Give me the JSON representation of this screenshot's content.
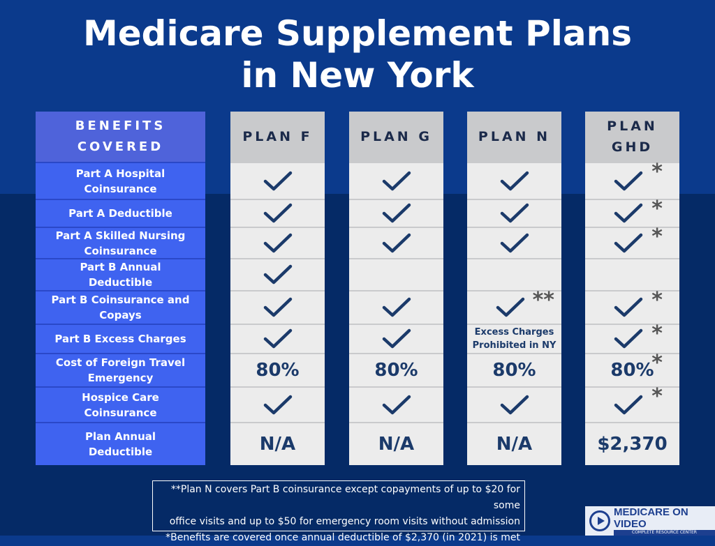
{
  "title": {
    "line1": "Medicare Supplement Plans",
    "line2": "in New York"
  },
  "benefits": {
    "header_line1": "BENEFITS",
    "header_line2": "COVERED",
    "rows": [
      {
        "line1": "Part A Hospital",
        "line2": "Coinsurance"
      },
      {
        "line1": "Part A Deductible",
        "line2": ""
      },
      {
        "line1": "Part A Skilled Nursing",
        "line2": "Coinsurance"
      },
      {
        "line1": "Part B Annual",
        "line2": "Deductible"
      },
      {
        "line1": "Part B Coinsurance and",
        "line2": "Copays"
      },
      {
        "line1": "Part B Excess Charges",
        "line2": ""
      },
      {
        "line1": "Cost of Foreign Travel",
        "line2": "Emergency"
      },
      {
        "line1": "Hospice Care",
        "line2": "Coinsurance"
      },
      {
        "line1": "Plan Annual",
        "line2": "Deductible"
      }
    ]
  },
  "plans": [
    {
      "header_line1": "PLAN F",
      "header_line2": "",
      "cells": [
        {
          "type": "check",
          "mark": ""
        },
        {
          "type": "check",
          "mark": ""
        },
        {
          "type": "check",
          "mark": ""
        },
        {
          "type": "check",
          "mark": ""
        },
        {
          "type": "check",
          "mark": ""
        },
        {
          "type": "check",
          "mark": ""
        },
        {
          "type": "text",
          "value": "80%",
          "mark": ""
        },
        {
          "type": "check",
          "mark": ""
        },
        {
          "type": "text",
          "value": "N/A",
          "mark": ""
        }
      ]
    },
    {
      "header_line1": "PLAN G",
      "header_line2": "",
      "cells": [
        {
          "type": "check",
          "mark": ""
        },
        {
          "type": "check",
          "mark": ""
        },
        {
          "type": "check",
          "mark": ""
        },
        {
          "type": "empty"
        },
        {
          "type": "check",
          "mark": ""
        },
        {
          "type": "check",
          "mark": ""
        },
        {
          "type": "text",
          "value": "80%",
          "mark": ""
        },
        {
          "type": "check",
          "mark": ""
        },
        {
          "type": "text",
          "value": "N/A",
          "mark": ""
        }
      ]
    },
    {
      "header_line1": "PLAN N",
      "header_line2": "",
      "cells": [
        {
          "type": "check",
          "mark": ""
        },
        {
          "type": "check",
          "mark": ""
        },
        {
          "type": "check",
          "mark": ""
        },
        {
          "type": "empty"
        },
        {
          "type": "check",
          "mark": "**"
        },
        {
          "type": "small",
          "line1": "Excess Charges",
          "line2": "Prohibited in NY"
        },
        {
          "type": "text",
          "value": "80%",
          "mark": ""
        },
        {
          "type": "check",
          "mark": ""
        },
        {
          "type": "text",
          "value": "N/A",
          "mark": ""
        }
      ]
    },
    {
      "header_line1": "PLAN",
      "header_line2": "GHD",
      "cells": [
        {
          "type": "check",
          "mark": "*"
        },
        {
          "type": "check",
          "mark": "*"
        },
        {
          "type": "check",
          "mark": "*"
        },
        {
          "type": "empty"
        },
        {
          "type": "check",
          "mark": "*"
        },
        {
          "type": "check",
          "mark": "*"
        },
        {
          "type": "text",
          "value": "80%",
          "mark": "*"
        },
        {
          "type": "check",
          "mark": "*"
        },
        {
          "type": "text",
          "value": "$2,370",
          "mark": ""
        }
      ]
    }
  ],
  "footnote": {
    "line1": "**Plan N covers Part B coinsurance except copayments of up to $20 for some",
    "line2": "office visits and up to $50  for emergency room visits without admission",
    "line3": "*Benefits are covered once annual deductible of $2,370 (in 2021) is met"
  },
  "logo": {
    "name": "MEDICARE ON VIDEO",
    "tagline": "COMPLETE RESOURCE CENTER"
  },
  "colors": {
    "background_top": "#0b3a8c",
    "background_bottom": "#052a66",
    "benefit_cell": "#3f63f0",
    "plan_header": "#c9cacc",
    "check": "#1b3a6a"
  },
  "icons": {
    "check": "check-icon",
    "logo": "play-icon"
  }
}
